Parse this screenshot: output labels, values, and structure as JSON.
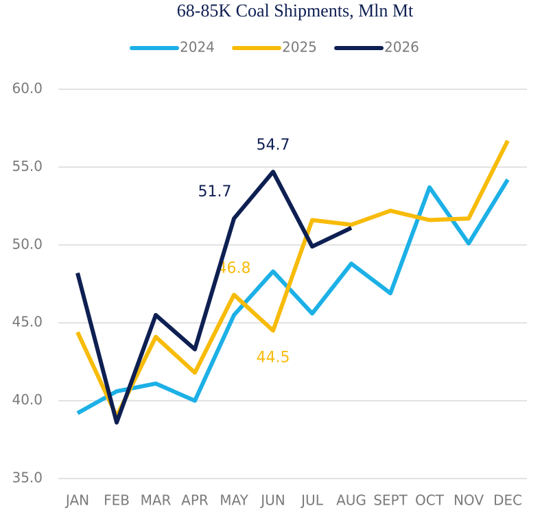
{
  "chart_data": {
    "type": "line",
    "title": "68-85K Coal Shipments, Mln Mt",
    "categories": [
      "JAN",
      "FEB",
      "MAR",
      "APR",
      "MAY",
      "JUN",
      "JUL",
      "AUG",
      "SEPT",
      "OCT",
      "NOV",
      "DEC"
    ],
    "series": [
      {
        "name": "2024",
        "color": "#1cb0e6",
        "values": [
          39.2,
          40.6,
          41.1,
          40.0,
          45.5,
          48.3,
          45.6,
          48.8,
          46.9,
          53.7,
          50.1,
          54.2
        ]
      },
      {
        "name": "2025",
        "color": "#f7bb0a",
        "values": [
          44.4,
          39.0,
          44.1,
          41.8,
          46.8,
          44.5,
          51.6,
          51.3,
          52.2,
          51.6,
          51.7,
          56.7
        ],
        "value_labels": [
          null,
          null,
          null,
          null,
          "46.8",
          "44.5",
          null,
          null,
          null,
          null,
          null,
          null
        ]
      },
      {
        "name": "2026",
        "color": "#0e1f52",
        "values": [
          48.2,
          38.6,
          45.5,
          43.3,
          51.7,
          54.7,
          49.9,
          51.1,
          null,
          null,
          null,
          null
        ],
        "value_labels": [
          null,
          null,
          null,
          null,
          "51.7",
          "54.7",
          null,
          null,
          null,
          null,
          null,
          null
        ]
      }
    ],
    "ylim": [
      35,
      60
    ],
    "yticks": [
      {
        "value": 35,
        "label": "35.0"
      },
      {
        "value": 40,
        "label": "40.0"
      },
      {
        "value": 45,
        "label": "45.0"
      },
      {
        "value": 50,
        "label": "50.0"
      },
      {
        "value": 55,
        "label": "55.0"
      },
      {
        "value": 60,
        "label": "60.0"
      }
    ],
    "grid": true,
    "legend": "top"
  }
}
